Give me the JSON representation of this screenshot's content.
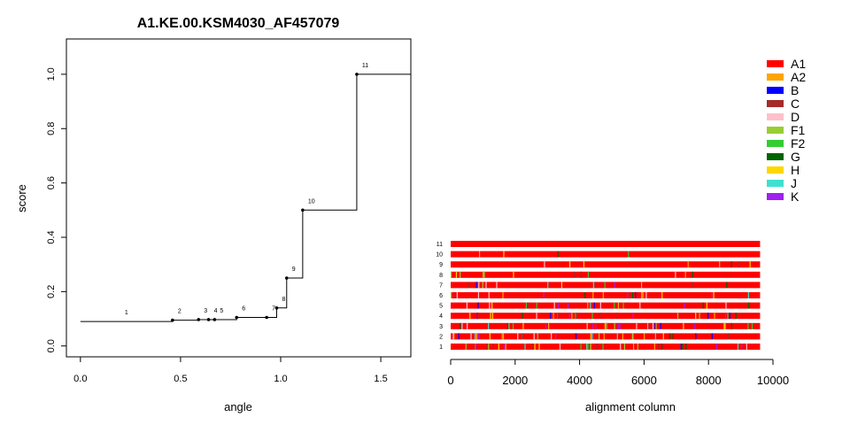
{
  "chart_data": [
    {
      "type": "line",
      "subtype": "step",
      "title": "A1.KE.00.KSM4030_AF457079",
      "xlabel": "angle",
      "ylabel": "score",
      "xlim": [
        -0.07,
        1.65
      ],
      "ylim": [
        -0.04,
        1.13
      ],
      "xticks": [
        "0.0",
        "0.5",
        "1.0",
        "1.5"
      ],
      "xtick_values": [
        0,
        0.5,
        1.0,
        1.5
      ],
      "yticks": [
        "0.0",
        "0.2",
        "0.4",
        "0.6",
        "0.8",
        "1.0"
      ],
      "ytick_values": [
        0,
        0.2,
        0.4,
        0.6,
        0.8,
        1.0
      ],
      "points": [
        {
          "label": "1",
          "x": 0.0,
          "y": 0.09
        },
        {
          "label": "2",
          "x": 0.46,
          "y": 0.095
        },
        {
          "label": "3",
          "x": 0.59,
          "y": 0.097
        },
        {
          "label": "4",
          "x": 0.64,
          "y": 0.097
        },
        {
          "label": "5",
          "x": 0.67,
          "y": 0.097
        },
        {
          "label": "6",
          "x": 0.78,
          "y": 0.105
        },
        {
          "label": "7",
          "x": 0.93,
          "y": 0.105
        },
        {
          "label": "8",
          "x": 0.98,
          "y": 0.14
        },
        {
          "label": "9",
          "x": 1.03,
          "y": 0.25
        },
        {
          "label": "10",
          "x": 1.11,
          "y": 0.5
        },
        {
          "label": "11",
          "x": 1.38,
          "y": 1.0
        }
      ],
      "end_x": 1.65,
      "grid": false
    },
    {
      "type": "heatmap",
      "subtype": "sequence-alignment-bars",
      "xlabel": "alignment column",
      "xlim": [
        0,
        10000
      ],
      "alignment_length": 9600,
      "xticks": [
        "0",
        "2000",
        "4000",
        "6000",
        "8000",
        "10000"
      ],
      "xtick_values": [
        0,
        2000,
        4000,
        6000,
        8000,
        10000
      ],
      "row_labels": [
        "1",
        "2",
        "3",
        "4",
        "5",
        "6",
        "7",
        "8",
        "9",
        "10",
        "11"
      ],
      "base_color": "#ff0000",
      "legend": [
        {
          "name": "A1",
          "color": "#ff0000"
        },
        {
          "name": "A2",
          "color": "#ffa500"
        },
        {
          "name": "B",
          "color": "#0000ff"
        },
        {
          "name": "C",
          "color": "#a52a2a"
        },
        {
          "name": "D",
          "color": "#ffc0cb"
        },
        {
          "name": "F1",
          "color": "#9acd32"
        },
        {
          "name": "F2",
          "color": "#32cd32"
        },
        {
          "name": "G",
          "color": "#006400"
        },
        {
          "name": "H",
          "color": "#ffd700"
        },
        {
          "name": "J",
          "color": "#40e0d0"
        },
        {
          "name": "K",
          "color": "#a020f0"
        }
      ],
      "legend_placement": "top-right"
    }
  ]
}
